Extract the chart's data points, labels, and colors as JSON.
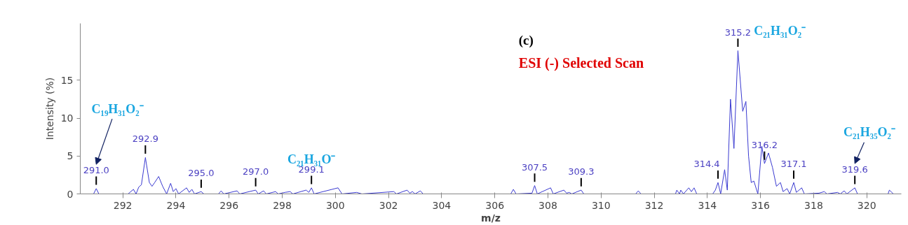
{
  "chart_data": {
    "type": "line",
    "xlabel": "m/z",
    "ylabel": "Intensity (%)",
    "x": [
      290.4,
      290.9,
      291.0,
      291.1,
      292.2,
      292.4,
      292.5,
      292.6,
      292.7,
      292.85,
      293.0,
      293.1,
      293.2,
      293.35,
      293.5,
      293.65,
      293.8,
      293.9,
      294.0,
      294.1,
      294.4,
      294.5,
      294.6,
      294.7,
      294.95,
      295.05,
      295.6,
      295.7,
      295.8,
      296.3,
      296.4,
      297.0,
      297.1,
      297.3,
      297.4,
      297.75,
      297.85,
      298.1,
      298.3,
      298.4,
      298.9,
      299.0,
      299.1,
      299.2,
      300.1,
      300.25,
      300.8,
      301.0,
      302.2,
      302.3,
      302.7,
      302.8,
      302.9,
      303.0,
      303.2,
      303.3,
      306.6,
      306.7,
      306.8,
      307.4,
      307.5,
      307.6,
      308.1,
      308.2,
      308.6,
      308.7,
      308.8,
      308.9,
      309.25,
      309.35,
      311.3,
      311.4,
      311.5,
      312.8,
      312.85,
      312.95,
      313.0,
      313.1,
      313.3,
      313.4,
      313.5,
      313.6,
      314.2,
      314.3,
      314.4,
      314.5,
      314.65,
      314.75,
      314.87,
      315.0,
      315.15,
      315.33,
      315.45,
      315.55,
      315.65,
      315.75,
      315.9,
      316.05,
      316.15,
      316.3,
      316.45,
      316.6,
      316.75,
      316.85,
      317.0,
      317.1,
      317.25,
      317.35,
      317.55,
      317.65,
      318.2,
      318.4,
      318.5,
      318.9,
      319.0,
      319.15,
      319.25,
      319.55,
      319.65,
      320.8,
      320.85,
      321.0
    ],
    "series": [
      {
        "color": "#3a3ad0",
        "values": [
          0,
          0,
          0.7,
          0,
          0,
          0.6,
          0,
          0.9,
          1.2,
          4.8,
          1.5,
          1.0,
          1.5,
          2.3,
          1.0,
          0,
          1.4,
          0.3,
          0.7,
          0,
          0.8,
          0.2,
          0.6,
          0,
          0.3,
          0,
          0,
          0.4,
          0,
          0.4,
          0,
          0.5,
          0,
          0.4,
          0,
          0.3,
          0,
          0.2,
          0.3,
          0,
          0.5,
          0.2,
          0.8,
          0,
          0.8,
          0,
          0.2,
          0,
          0.3,
          0,
          0.5,
          0.1,
          0.3,
          0,
          0.4,
          0,
          0,
          0.6,
          0,
          0.1,
          1.1,
          0,
          0.8,
          0,
          0.5,
          0.1,
          0.2,
          0,
          0.5,
          0,
          0,
          0.4,
          0,
          0,
          0.5,
          0,
          0.5,
          0,
          0.8,
          0.3,
          0.8,
          0,
          0,
          0.5,
          1.5,
          0,
          3.2,
          0.5,
          12.5,
          6.0,
          18.9,
          10.9,
          12.2,
          5.0,
          1.5,
          1.7,
          0,
          6.3,
          4.0,
          5.4,
          3.5,
          1.0,
          1.5,
          0.3,
          0.7,
          0,
          1.5,
          0.2,
          0.8,
          0,
          0.1,
          0.3,
          0,
          0.2,
          0,
          0.4,
          0,
          0.8,
          0,
          0,
          0.5,
          0
        ]
      }
    ],
    "xlim": [
      290.4,
      321.3
    ],
    "ylim": [
      0,
      22.5
    ],
    "xticks": [
      292,
      294,
      296,
      298,
      300,
      302,
      304,
      306,
      308,
      310,
      312,
      314,
      316,
      318,
      320
    ],
    "yticks": [
      0,
      5,
      10,
      15
    ],
    "grid": false,
    "marker": "none",
    "line_style": "solid",
    "annotations": [
      "(c)",
      "ESI (-) Selected Scan",
      "C₁₉H₃₁O₂⁻",
      "C₂₁H₃₁O⁻",
      "C₂₁H₃₁O₂⁻",
      "C₂₁H₃₅O₂⁻",
      {
        "text": "291.0",
        "x": 291.0,
        "y": 0.7
      },
      {
        "text": "292.9",
        "x": 292.85,
        "y": 4.8
      },
      {
        "text": "295.0",
        "x": 294.95,
        "y": 0.3
      },
      {
        "text": "297.0",
        "x": 297.0,
        "y": 0.5
      },
      {
        "text": "299.1",
        "x": 299.1,
        "y": 0.8
      },
      {
        "text": "307.5",
        "x": 307.5,
        "y": 1.1
      },
      {
        "text": "309.3",
        "x": 309.25,
        "y": 0.5
      },
      {
        "text": "314.4",
        "x": 314.4,
        "y": 1.5
      },
      {
        "text": "315.2",
        "x": 315.15,
        "y": 18.9
      },
      {
        "text": "316.2",
        "x": 316.15,
        "y": 4.0
      },
      {
        "text": "317.1",
        "x": 317.25,
        "y": 1.5
      },
      {
        "text": "319.6",
        "x": 319.55,
        "y": 0.8
      }
    ]
  }
}
